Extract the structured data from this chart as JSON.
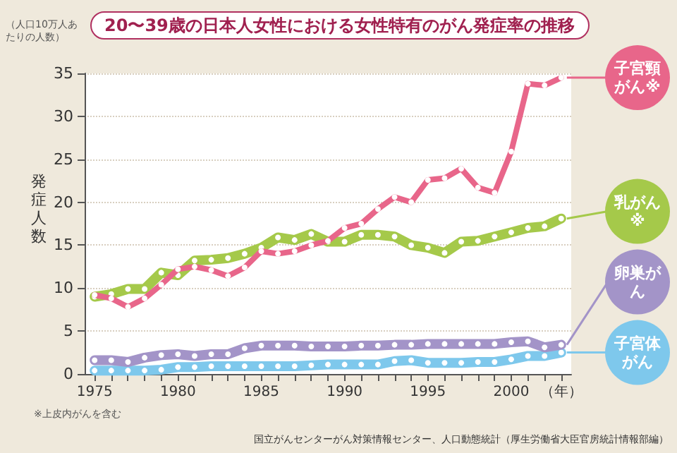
{
  "chart_data": {
    "type": "line",
    "title": "20〜39歳の日本人女性における女性特有のがん発症率の推移",
    "ylabel": "発症人数",
    "annotations": [
      "（人口10万人あたりの人数）",
      "※上皮内がんを含む",
      "国立がんセンターがん対策情報センター、人口動態統計（厚生労働省大臣官房統計情報部編）"
    ],
    "x": [
      1975,
      1976,
      1977,
      1978,
      1979,
      1980,
      1981,
      1982,
      1983,
      1984,
      1985,
      1986,
      1987,
      1988,
      1989,
      1990,
      1991,
      1992,
      1993,
      1994,
      1995,
      1996,
      1997,
      1998,
      1999,
      2000,
      2001,
      2002,
      2003
    ],
    "series": [
      {
        "name": "子宮頸がん※",
        "color": "#e8668a",
        "values": [
          9.2,
          8.8,
          7.8,
          8.8,
          10.4,
          12.2,
          12.5,
          12.1,
          11.4,
          12.4,
          14.3,
          14.0,
          14.3,
          15.0,
          15.5,
          17.0,
          17.5,
          19.2,
          20.6,
          20.0,
          22.6,
          22.8,
          23.9,
          21.7,
          21.1,
          25.9,
          33.8,
          33.6,
          34.5
        ]
      },
      {
        "name": "乳がん※",
        "color": "#a5c94a",
        "values": [
          9.0,
          9.3,
          9.9,
          9.9,
          11.8,
          11.5,
          13.2,
          13.3,
          13.5,
          14.0,
          14.7,
          15.9,
          15.6,
          16.3,
          15.4,
          15.4,
          16.2,
          16.2,
          16.0,
          15.0,
          14.7,
          14.1,
          15.4,
          15.5,
          16.0,
          16.5,
          17.0,
          17.2,
          18.1
        ]
      },
      {
        "name": "卵巣がん",
        "color": "#a394c8",
        "values": [
          1.6,
          1.6,
          1.4,
          1.9,
          2.2,
          2.3,
          2.1,
          2.3,
          2.3,
          3.0,
          3.3,
          3.3,
          3.3,
          3.2,
          3.2,
          3.2,
          3.3,
          3.3,
          3.4,
          3.4,
          3.5,
          3.5,
          3.5,
          3.5,
          3.5,
          3.7,
          3.8,
          3.1,
          3.4
        ]
      },
      {
        "name": "子宮体がん",
        "color": "#7ec8ec",
        "values": [
          0.4,
          0.4,
          0.4,
          0.4,
          0.5,
          0.8,
          0.8,
          0.9,
          0.9,
          0.9,
          0.9,
          0.9,
          0.9,
          1.0,
          1.1,
          1.1,
          1.1,
          1.1,
          1.5,
          1.6,
          1.3,
          1.3,
          1.3,
          1.4,
          1.4,
          1.7,
          2.1,
          2.1,
          2.5
        ]
      }
    ],
    "xlim": [
      1974.4,
      2003.6
    ],
    "xticks": [
      1975,
      {
        "value": 1976,
        "label": null
      },
      {
        "value": 1977,
        "label": null
      },
      {
        "value": 1978,
        "label": null
      },
      {
        "value": 1979,
        "label": null
      },
      1980,
      {
        "value": 1981,
        "label": null
      },
      {
        "value": 1982,
        "label": null
      },
      {
        "value": 1983,
        "label": null
      },
      {
        "value": 1984,
        "label": null
      },
      1985,
      {
        "value": 1986,
        "label": null
      },
      {
        "value": 1987,
        "label": null
      },
      {
        "value": 1988,
        "label": null
      },
      {
        "value": 1989,
        "label": null
      },
      1990,
      {
        "value": 1991,
        "label": null
      },
      {
        "value": 1992,
        "label": null
      },
      {
        "value": 1993,
        "label": null
      },
      {
        "value": 1994,
        "label": null
      },
      1995,
      {
        "value": 1996,
        "label": null
      },
      {
        "value": 1997,
        "label": null
      },
      {
        "value": 1998,
        "label": null
      },
      {
        "value": 1999,
        "label": null
      },
      2000,
      {
        "value": 2001,
        "label": null
      },
      {
        "value": 2002,
        "label": null
      },
      {
        "value": 2003,
        "label": "（年）"
      }
    ],
    "ylim": [
      0,
      35
    ],
    "yticks": [
      0,
      5,
      10,
      15,
      20,
      25,
      30,
      35
    ],
    "grid": "y",
    "legend": "right",
    "marker": "circle",
    "line_style": "solid"
  }
}
